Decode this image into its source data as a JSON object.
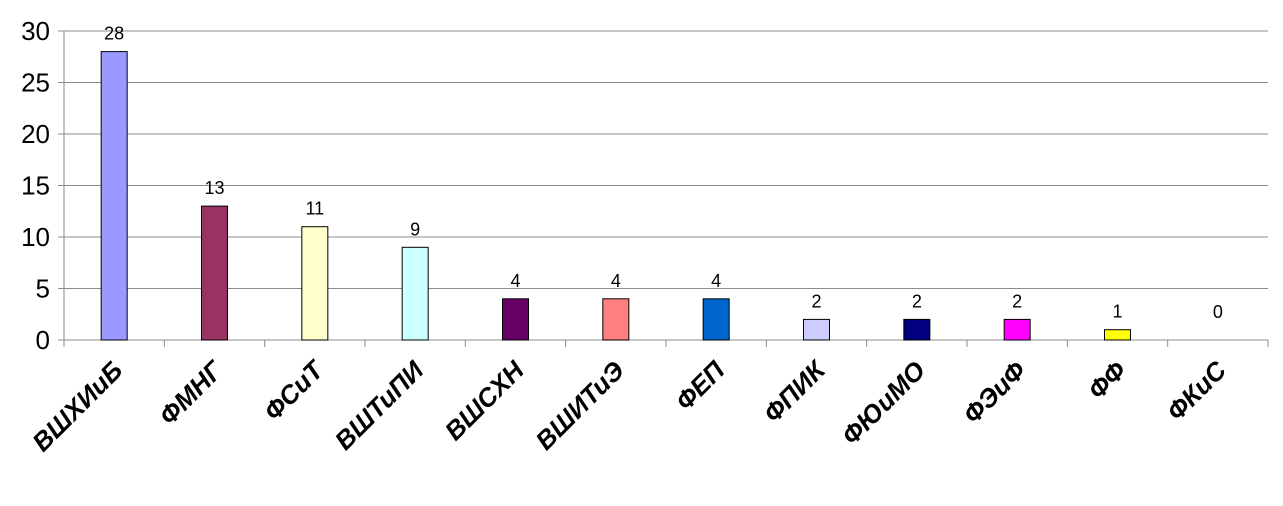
{
  "chart_data": {
    "type": "bar",
    "categories": [
      "ВШХИиБ",
      "ФМНГ",
      "ФСиТ",
      "ВШТиПИ",
      "ВШСХН",
      "ВШИТиЭ",
      "ФЕП",
      "ФПИК",
      "ФЮиМО",
      "ФЭиФ",
      "ФФ",
      "ФКиС"
    ],
    "values": [
      28,
      13,
      11,
      9,
      4,
      4,
      4,
      2,
      2,
      2,
      1,
      0
    ],
    "data_labels": [
      "28",
      "13",
      "11",
      "9",
      "4",
      "4",
      "4",
      "2",
      "2",
      "2",
      "1",
      "0"
    ],
    "colors": [
      "#9999ff",
      "#993366",
      "#ffffcc",
      "#ccffff",
      "#660066",
      "#ff8080",
      "#0066cc",
      "#ccccff",
      "#000080",
      "#ff00ff",
      "#ffff00",
      "#00ffff"
    ],
    "y_ticks": [
      0,
      5,
      10,
      15,
      20,
      25,
      30
    ],
    "ylim": [
      0,
      30
    ],
    "grid": true,
    "legend": "none",
    "title": "",
    "xlabel": "",
    "ylabel": ""
  }
}
